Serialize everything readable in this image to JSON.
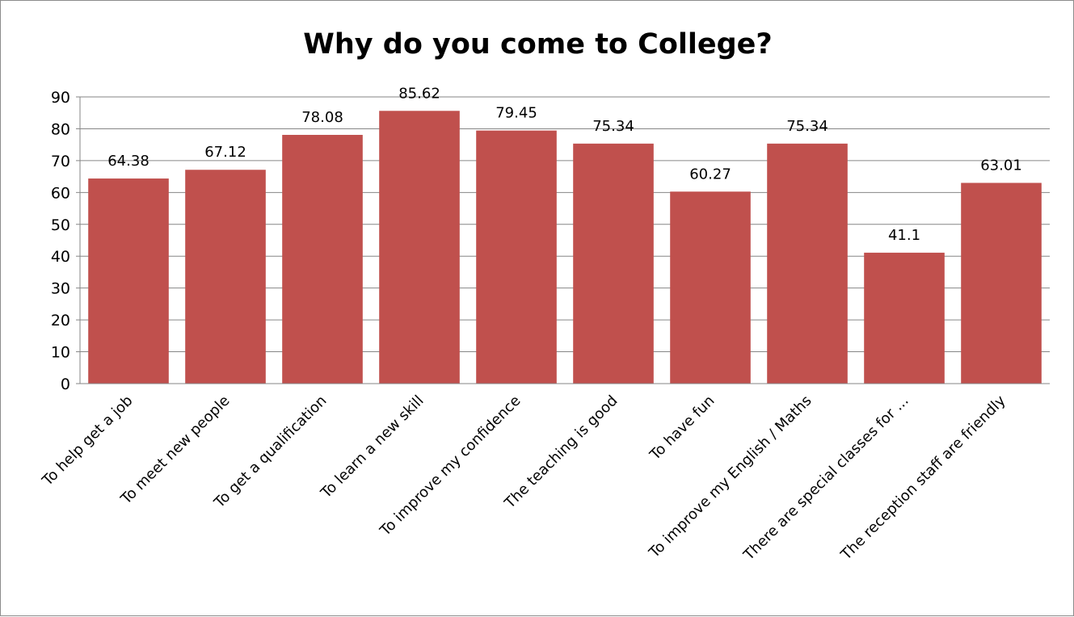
{
  "chart_data": {
    "type": "bar",
    "title": "Why do you come to College?",
    "categories": [
      "To help get a job",
      "To meet new people",
      "To get a qualification",
      "To learn a new skill",
      "To improve my confidence",
      "The teaching is good",
      "To have fun",
      "To improve my English / Maths",
      "There are special classes for ...",
      "The reception staff are friendly"
    ],
    "values": [
      64.38,
      67.12,
      78.08,
      85.62,
      79.45,
      75.34,
      60.27,
      75.34,
      41.1,
      63.01
    ],
    "data_labels": [
      "64.38",
      "67.12",
      "78.08",
      "85.62",
      "79.45",
      "75.34",
      "60.27",
      "75.34",
      "41.1",
      "63.01"
    ],
    "y_ticks": [
      "0",
      "10",
      "20",
      "30",
      "40",
      "50",
      "60",
      "70",
      "80",
      "90"
    ],
    "ylim": [
      0,
      90
    ],
    "xlabel": "",
    "ylabel": "",
    "grid": true,
    "legend": "none",
    "bar_color": "#c0504d",
    "grid_color": "#868686"
  }
}
